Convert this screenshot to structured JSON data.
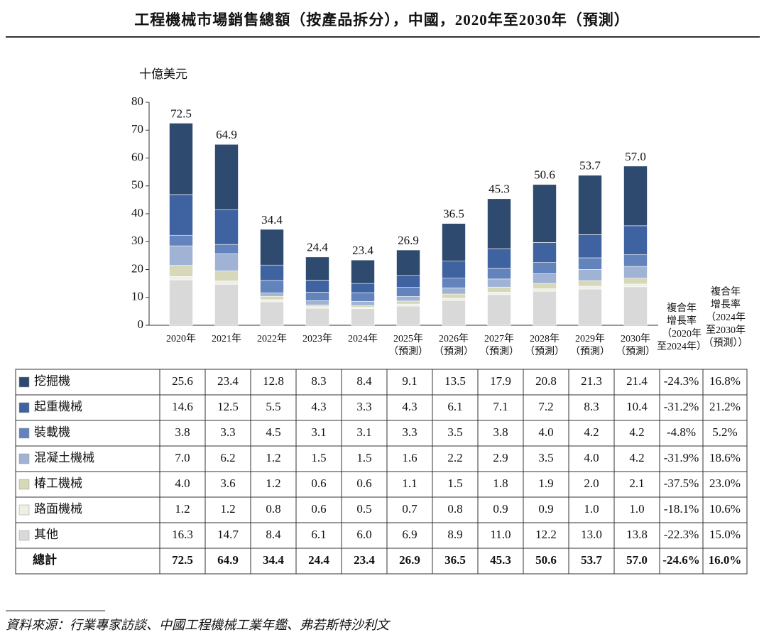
{
  "chart_data": {
    "type": "stacked_bar",
    "title": "工程機械市場銷售總額（按產品拆分），中國，2020年至2030年（預測）",
    "y_label": "十億美元",
    "categories": [
      "2020年",
      "2021年",
      "2022年",
      "2023年",
      "2024年",
      "2025年\n（預測）",
      "2026年\n（預測）",
      "2027年\n（預測）",
      "2028年\n（預測）",
      "2029年\n（預測）",
      "2030年\n（預測）"
    ],
    "ylim": [
      0,
      80
    ],
    "yticks": [
      0,
      10,
      20,
      30,
      40,
      50,
      60,
      70,
      80
    ],
    "cagr_headers": [
      "複合年\n增長率\n（2020年\n至2024年）",
      "複合年\n增長率\n（2024年\n至2030年\n（預測））"
    ],
    "series": [
      {
        "name": "挖掘機",
        "color": "#2e4a6e",
        "values": [
          25.6,
          23.4,
          12.8,
          8.3,
          8.4,
          9.1,
          13.5,
          17.9,
          20.8,
          21.3,
          21.4
        ],
        "value_labels": [
          "25.6",
          "23.4",
          "12.8",
          "8.3",
          "8.4",
          "9.1",
          "13.5",
          "17.9",
          "20.8",
          "21.3",
          "21.4"
        ],
        "cagr": [
          -24.3,
          16.8
        ],
        "cagr_labels": [
          "-24.3%",
          "16.8%"
        ]
      },
      {
        "name": "起重機械",
        "color": "#3f63a0",
        "values": [
          14.6,
          12.5,
          5.5,
          4.3,
          3.3,
          4.3,
          6.1,
          7.1,
          7.2,
          8.3,
          10.4
        ],
        "value_labels": [
          "14.6",
          "12.5",
          "5.5",
          "4.3",
          "3.3",
          "4.3",
          "6.1",
          "7.1",
          "7.2",
          "8.3",
          "10.4"
        ],
        "cagr": [
          -31.2,
          21.2
        ],
        "cagr_labels": [
          "-31.2%",
          "21.2%"
        ]
      },
      {
        "name": "裝載機",
        "color": "#6283bb",
        "values": [
          3.8,
          3.3,
          4.5,
          3.1,
          3.1,
          3.3,
          3.5,
          3.8,
          4.0,
          4.2,
          4.2
        ],
        "value_labels": [
          "3.8",
          "3.3",
          "4.5",
          "3.1",
          "3.1",
          "3.3",
          "3.5",
          "3.8",
          "4.0",
          "4.2",
          "4.2"
        ],
        "cagr": [
          -4.8,
          5.2
        ],
        "cagr_labels": [
          "-4.8%",
          "5.2%"
        ]
      },
      {
        "name": "混凝土機械",
        "color": "#a0b3d4",
        "values": [
          7.0,
          6.2,
          1.2,
          1.5,
          1.5,
          1.6,
          2.2,
          2.9,
          3.5,
          4.0,
          4.2
        ],
        "value_labels": [
          "7.0",
          "6.2",
          "1.2",
          "1.5",
          "1.5",
          "1.6",
          "2.2",
          "2.9",
          "3.5",
          "4.0",
          "4.2"
        ],
        "cagr": [
          -31.9,
          18.6
        ],
        "cagr_labels": [
          "-31.9%",
          "18.6%"
        ]
      },
      {
        "name": "椿工機械",
        "color": "#d6d8b9",
        "values": [
          4.0,
          3.6,
          1.2,
          0.6,
          0.6,
          1.1,
          1.5,
          1.8,
          1.9,
          2.0,
          2.1
        ],
        "value_labels": [
          "4.0",
          "3.6",
          "1.2",
          "0.6",
          "0.6",
          "1.1",
          "1.5",
          "1.8",
          "1.9",
          "2.0",
          "2.1"
        ],
        "cagr": [
          -37.5,
          23.0
        ],
        "cagr_labels": [
          "-37.5%",
          "23.0%"
        ]
      },
      {
        "name": "路面機械",
        "color": "#eef0e4",
        "values": [
          1.2,
          1.2,
          0.8,
          0.6,
          0.5,
          0.7,
          0.8,
          0.9,
          0.9,
          1.0,
          1.0
        ],
        "value_labels": [
          "1.2",
          "1.2",
          "0.8",
          "0.6",
          "0.5",
          "0.7",
          "0.8",
          "0.9",
          "0.9",
          "1.0",
          "1.0"
        ],
        "cagr": [
          -18.1,
          10.6
        ],
        "cagr_labels": [
          "-18.1%",
          "10.6%"
        ]
      },
      {
        "name": "其他",
        "color": "#d9d9d9",
        "values": [
          16.3,
          14.7,
          8.4,
          6.1,
          6.0,
          6.9,
          8.9,
          11.0,
          12.2,
          13.0,
          13.8
        ],
        "value_labels": [
          "16.3",
          "14.7",
          "8.4",
          "6.1",
          "6.0",
          "6.9",
          "8.9",
          "11.0",
          "12.2",
          "13.0",
          "13.8"
        ],
        "cagr": [
          -22.3,
          15.0
        ],
        "cagr_labels": [
          "-22.3%",
          "15.0%"
        ]
      }
    ],
    "total": {
      "name": "總計",
      "values": [
        72.5,
        64.9,
        34.4,
        24.4,
        23.4,
        26.9,
        36.5,
        45.3,
        50.6,
        53.7,
        57.0
      ],
      "value_labels": [
        "72.5",
        "64.9",
        "34.4",
        "24.4",
        "23.4",
        "26.9",
        "36.5",
        "45.3",
        "50.6",
        "53.7",
        "57.0"
      ],
      "cagr": [
        -24.6,
        16.0
      ],
      "cagr_labels": [
        "-24.6%",
        "16.0%"
      ]
    },
    "source": "資料來源：行業專家訪談、中國工程機械工業年鑑、弗若斯特沙利文"
  }
}
